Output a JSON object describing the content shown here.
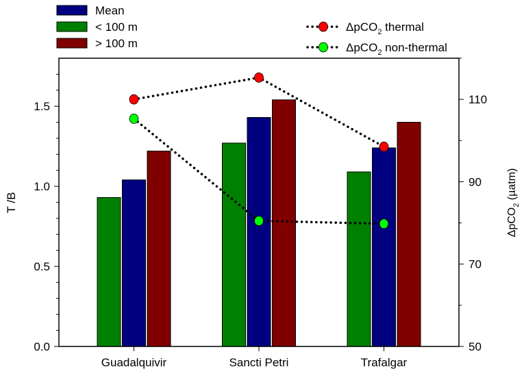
{
  "chart_data": {
    "type": "bar",
    "categories": [
      "Guadalquivir",
      "Sancti Petri",
      "Trafalgar"
    ],
    "ylabel": "T /B",
    "ylim": [
      0,
      1.8
    ],
    "yticks": [
      "0.0",
      "0.5",
      "1.0",
      "1.5"
    ],
    "y2label_main": "ΔpCO",
    "y2label_sub": "2",
    "y2label_unit": " (µatm)",
    "y2lim": [
      50,
      120
    ],
    "y2ticks": [
      "50",
      "70",
      "90",
      "110"
    ],
    "grid": false,
    "legend_left_placement": "top-left",
    "legend_right_placement": "top-right",
    "series": [
      {
        "name": "Mean",
        "type": "bar",
        "color": "#000080",
        "values": [
          1.04,
          1.43,
          1.24
        ]
      },
      {
        "name": "< 100 m",
        "type": "bar",
        "color": "#008000",
        "values": [
          0.93,
          1.27,
          1.09
        ]
      },
      {
        "name": "> 100 m",
        "type": "bar",
        "color": "#800000",
        "values": [
          1.22,
          1.54,
          1.4
        ]
      }
    ],
    "line_series": [
      {
        "name_main": "ΔpCO",
        "name_sub": "2",
        "name_rest": " thermal",
        "axis": "right",
        "style": "dotted",
        "color": "#ff0000",
        "values": [
          110,
          115.3,
          98.5
        ]
      },
      {
        "name_main": "ΔpCO",
        "name_sub": "2",
        "name_rest": " non-thermal",
        "axis": "right",
        "style": "dotted",
        "color": "#00ff00",
        "values": [
          105.3,
          80.5,
          79.8
        ]
      }
    ]
  }
}
